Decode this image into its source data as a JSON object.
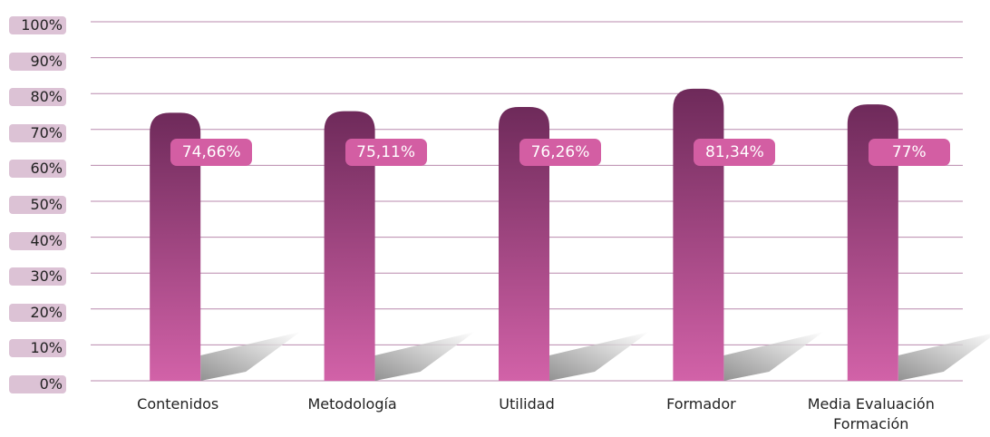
{
  "chart_data": {
    "type": "bar",
    "categories": [
      "Contenidos",
      "Metodología",
      "Utilidad",
      "Formador",
      "Media Evaluación Formación"
    ],
    "values": [
      74.66,
      75.11,
      76.26,
      81.34,
      77
    ],
    "value_labels": [
      "74,66%",
      "75,11%",
      "76,26%",
      "81,34%",
      "77%"
    ],
    "color_top": "#6e2a5a",
    "color_bottom": "#d262a8",
    "ylim": [
      0,
      100
    ],
    "yticks": [
      {
        "value": 0,
        "label": "0%"
      },
      {
        "value": 10,
        "label": "10%"
      },
      {
        "value": 20,
        "label": "20%"
      },
      {
        "value": 30,
        "label": "30%"
      },
      {
        "value": 40,
        "label": "40%"
      },
      {
        "value": 50,
        "label": "50%"
      },
      {
        "value": 60,
        "label": "60%"
      },
      {
        "value": 70,
        "label": "70%"
      },
      {
        "value": 80,
        "label": "80%"
      },
      {
        "value": 90,
        "label": "90%"
      },
      {
        "value": 100,
        "label": "100%"
      }
    ],
    "grid": true
  }
}
